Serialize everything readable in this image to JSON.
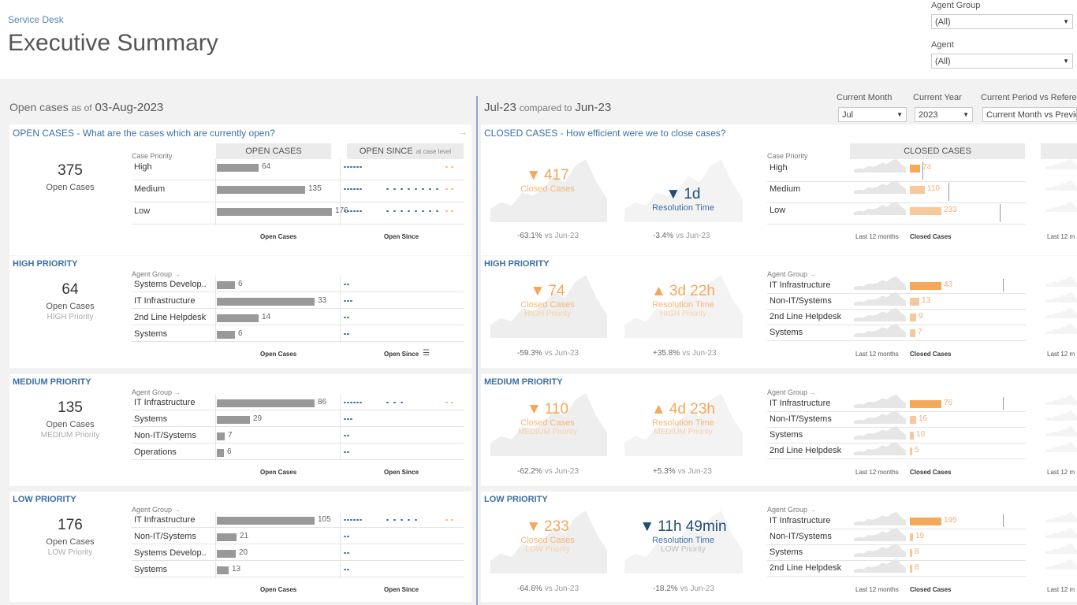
{
  "header": {
    "breadcrumb": "Service Desk",
    "title": "Executive Summary",
    "filters": [
      {
        "label": "Agent Group",
        "value": "(All)"
      },
      {
        "label": "Agent",
        "value": "(All)"
      }
    ]
  },
  "left_panel": {
    "title_prefix": "Open cases",
    "title_mid": "as of",
    "title_date": "03-Aug-2023"
  },
  "right_panel": {
    "title_month": "Jul-23",
    "title_mid": "compared to",
    "title_ref": "Jun-23",
    "controls": [
      {
        "label": "Current Month",
        "value": "Jul"
      },
      {
        "label": "Current Year",
        "value": "2023"
      },
      {
        "label": "Current Period vs Reference",
        "value": "Current Month vs Previous"
      }
    ]
  },
  "labels": {
    "case_priority": "Case Priority",
    "agent_group": "Agent Group",
    "open_cases_col": "OPEN CASES",
    "open_since_col": "OPEN SINCE",
    "open_since_note": "at case level",
    "closed_cases_col": "CLOSED CASES",
    "axis_open_cases": "Open Cases",
    "axis_open_since": "Open Since",
    "axis_last12": "Last 12 months",
    "axis_closed_cases": "Closed Cases",
    "last12_short": "Last 12 m"
  },
  "open_sections": [
    {
      "header": "OPEN CASES - What are the cases which are currently open?",
      "kpi_value": "375",
      "kpi_label": "Open Cases",
      "kpi_sub": "",
      "rows": [
        {
          "label": "High",
          "value": 64
        },
        {
          "label": "Medium",
          "value": 135
        },
        {
          "label": "Low",
          "value": 176
        }
      ]
    },
    {
      "header": "HIGH PRIORITY",
      "kpi_value": "64",
      "kpi_label": "Open Cases",
      "kpi_sub": "HIGH Priority",
      "rows": [
        {
          "label": "Systems Develop..",
          "value": 6
        },
        {
          "label": "IT Infrastructure",
          "value": 33
        },
        {
          "label": "2nd Line Helpdesk",
          "value": 14
        },
        {
          "label": "Systems",
          "value": 6
        }
      ]
    },
    {
      "header": "MEDIUM PRIORITY",
      "kpi_value": "135",
      "kpi_label": "Open Cases",
      "kpi_sub": "MEDIUM Priority",
      "rows": [
        {
          "label": "IT Infrastructure",
          "value": 86
        },
        {
          "label": "Systems",
          "value": 29
        },
        {
          "label": "Non-IT/Systems",
          "value": 7
        },
        {
          "label": "Operations",
          "value": 6
        }
      ]
    },
    {
      "header": "LOW PRIORITY",
      "kpi_value": "176",
      "kpi_label": "Open Cases",
      "kpi_sub": "LOW Priority",
      "rows": [
        {
          "label": "IT Infrastructure",
          "value": 105
        },
        {
          "label": "Non-IT/Systems",
          "value": 21
        },
        {
          "label": "Systems Develop..",
          "value": 20
        },
        {
          "label": "Systems",
          "value": 13
        }
      ]
    }
  ],
  "closed_sections": [
    {
      "header": "CLOSED CASES - How efficient were we to close cases?",
      "closed_value": "417",
      "closed_dir": "▼",
      "closed_label": "Closed Cases",
      "closed_sub": "",
      "closed_pct": "-63.1%",
      "vs": "vs Jun-23",
      "res_value": "1d",
      "res_dir": "▼",
      "res_label": "Resolution Time",
      "res_sub": "",
      "res_pct": "-3.4%",
      "rows": [
        {
          "label": "High",
          "value": 74
        },
        {
          "label": "Medium",
          "value": 110
        },
        {
          "label": "Low",
          "value": 233
        }
      ]
    },
    {
      "header": "HIGH PRIORITY",
      "closed_value": "74",
      "closed_dir": "▼",
      "closed_label": "Closed Cases",
      "closed_sub": "HIGH Priority",
      "closed_pct": "-59.3%",
      "vs": "vs Jun-23",
      "res_value": "3d 22h",
      "res_dir": "▲",
      "res_label": "Resolution Time",
      "res_sub": "HIGH Priority",
      "res_pct": "+35.8%",
      "rows": [
        {
          "label": "IT Infrastructure",
          "value": 43
        },
        {
          "label": "Non-IT/Systems",
          "value": 13
        },
        {
          "label": "2nd Line Helpdesk",
          "value": 9
        },
        {
          "label": "Systems",
          "value": 7
        }
      ]
    },
    {
      "header": "MEDIUM PRIORITY",
      "closed_value": "110",
      "closed_dir": "▼",
      "closed_label": "Closed Cases",
      "closed_sub": "MEDIUM Priority",
      "closed_pct": "-62.2%",
      "vs": "vs Jun-23",
      "res_value": "4d 23h",
      "res_dir": "▲",
      "res_label": "Resolution Time",
      "res_sub": "MEDIUM Priority",
      "res_pct": "+5.3%",
      "rows": [
        {
          "label": "IT Infrastructure",
          "value": 76
        },
        {
          "label": "Non-IT/Systems",
          "value": 16
        },
        {
          "label": "Systems",
          "value": 10
        },
        {
          "label": "2nd Line Helpdesk",
          "value": 5
        }
      ]
    },
    {
      "header": "LOW PRIORITY",
      "closed_value": "233",
      "closed_dir": "▼",
      "closed_label": "Closed Cases",
      "closed_sub": "LOW Priority",
      "closed_pct": "-64.6%",
      "vs": "vs Jun-23",
      "res_value": "11h 49min",
      "res_dir": "▼",
      "res_label": "Resolution Time",
      "res_sub": "LOW Priority",
      "res_pct": "-18.2%",
      "rows": [
        {
          "label": "IT Infrastructure",
          "value": 195
        },
        {
          "label": "Non-IT/Systems",
          "value": 19
        },
        {
          "label": "Systems",
          "value": 8
        },
        {
          "label": "2nd Line Helpdesk",
          "value": 8
        }
      ]
    }
  ]
}
